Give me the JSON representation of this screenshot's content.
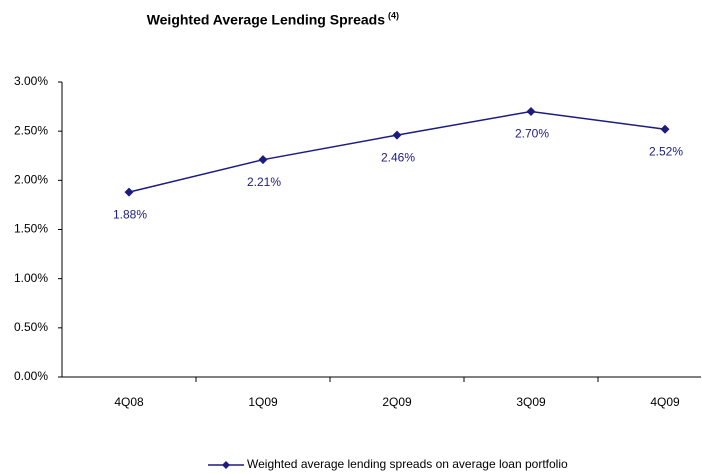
{
  "chart_data": {
    "type": "line",
    "title": "Weighted Average Lending Spreads",
    "title_note": "(4)",
    "categories": [
      "4Q08",
      "1Q09",
      "2Q09",
      "3Q09",
      "4Q09"
    ],
    "series": [
      {
        "name": "Weighted average lending spreads on average loan portfolio",
        "color": "#1c1c80",
        "values": [
          1.88,
          2.21,
          2.46,
          2.7,
          2.52
        ],
        "value_labels": [
          "1.88%",
          "2.21%",
          "2.46%",
          "2.70%",
          "2.52%"
        ]
      }
    ],
    "ylim": [
      0,
      3
    ],
    "yticks": [
      {
        "value": 0,
        "label": "0.00%"
      },
      {
        "value": 0.5,
        "label": "0.50%"
      },
      {
        "value": 1,
        "label": "1.00%"
      },
      {
        "value": 1.5,
        "label": "1.50%"
      },
      {
        "value": 2,
        "label": "2.00%"
      },
      {
        "value": 2.5,
        "label": "2.50%"
      },
      {
        "value": 3,
        "label": "3.00%"
      }
    ],
    "grid": false,
    "legend": "bottom"
  }
}
